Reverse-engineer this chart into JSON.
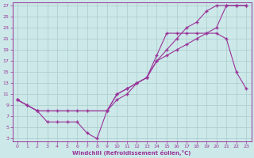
{
  "xlabel": "Windchill (Refroidissement éolien,°C)",
  "bg_color": "#cce8e8",
  "line_color": "#993399",
  "grid_color": "#aacccc",
  "xlim": [
    -0.5,
    23.5
  ],
  "ylim": [
    2.5,
    27.5
  ],
  "xticks": [
    0,
    1,
    2,
    3,
    4,
    5,
    6,
    7,
    8,
    9,
    10,
    11,
    12,
    13,
    14,
    15,
    16,
    17,
    18,
    19,
    20,
    21,
    22,
    23
  ],
  "yticks": [
    3,
    5,
    7,
    9,
    11,
    13,
    15,
    17,
    19,
    21,
    23,
    25,
    27
  ],
  "line1_x": [
    0,
    1,
    2,
    3,
    4,
    5,
    6,
    7,
    8,
    9,
    10,
    11,
    12,
    13,
    14,
    15,
    16,
    17,
    18,
    19,
    20,
    21,
    22,
    23
  ],
  "line1_y": [
    10,
    9,
    8,
    6,
    6,
    6,
    6,
    4,
    3,
    8,
    10,
    11,
    13,
    14,
    17,
    18,
    19,
    20,
    21,
    22,
    23,
    27,
    27,
    27
  ],
  "line2_x": [
    0,
    2,
    3,
    4,
    5,
    6,
    7,
    9,
    10,
    11,
    12,
    13,
    14,
    15,
    16,
    17,
    18,
    19,
    20,
    21,
    22,
    23
  ],
  "line2_y": [
    10,
    8,
    8,
    8,
    8,
    8,
    8,
    8,
    11,
    12,
    13,
    14,
    18,
    22,
    22,
    22,
    22,
    22,
    22,
    21,
    15,
    12
  ],
  "line3_x": [
    0,
    1,
    2,
    9,
    10,
    11,
    12,
    13,
    14,
    15,
    16,
    17,
    18,
    19,
    20,
    21,
    22,
    23
  ],
  "line3_y": [
    10,
    9,
    8,
    8,
    11,
    12,
    13,
    14,
    17,
    19,
    21,
    23,
    24,
    26,
    27,
    27,
    27,
    27
  ]
}
